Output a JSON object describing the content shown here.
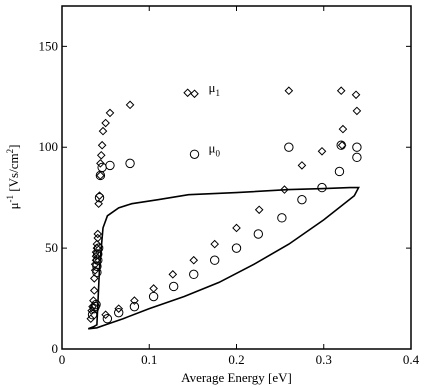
{
  "chart_data": {
    "type": "scatter",
    "title": "",
    "xlabel": "Average Energy  [eV]",
    "ylabel_main": "μ",
    "ylabel_sup": "-1",
    "ylabel_rest": " [Vs/cm",
    "ylabel_sup2": "2",
    "ylabel_end": "]",
    "xlim": [
      0,
      0.4
    ],
    "ylim": [
      0,
      170
    ],
    "xticks": [
      0,
      0.1,
      0.2,
      0.3,
      0.4
    ],
    "xtick_labels": [
      "0",
      "0.1",
      "0.2",
      "0.3",
      "0.4"
    ],
    "yticks": [
      0,
      50,
      100,
      150
    ],
    "ytick_labels": [
      "0",
      "50",
      "100",
      "150"
    ],
    "grid": false,
    "series": [
      {
        "name": "μ1",
        "name_main": "μ",
        "name_sub": "1",
        "marker": "diamond",
        "legend_pos": [
          0.145,
          127
        ],
        "points": [
          [
            0.033,
            15
          ],
          [
            0.034,
            19
          ],
          [
            0.035,
            21
          ],
          [
            0.036,
            24
          ],
          [
            0.037,
            29
          ],
          [
            0.037,
            35
          ],
          [
            0.038,
            39
          ],
          [
            0.038,
            42
          ],
          [
            0.039,
            44
          ],
          [
            0.039,
            46
          ],
          [
            0.039,
            48
          ],
          [
            0.04,
            50
          ],
          [
            0.04,
            52
          ],
          [
            0.041,
            55
          ],
          [
            0.041,
            57
          ],
          [
            0.042,
            72
          ],
          [
            0.043,
            76
          ],
          [
            0.044,
            86
          ],
          [
            0.044,
            92
          ],
          [
            0.045,
            96
          ],
          [
            0.046,
            101
          ],
          [
            0.047,
            108
          ],
          [
            0.05,
            112
          ],
          [
            0.055,
            117
          ],
          [
            0.078,
            121
          ],
          [
            0.144,
            127
          ],
          [
            0.26,
            128
          ],
          [
            0.32,
            128
          ],
          [
            0.337,
            126
          ],
          [
            0.338,
            118
          ],
          [
            0.322,
            109
          ],
          [
            0.321,
            101
          ],
          [
            0.298,
            98
          ],
          [
            0.275,
            91
          ],
          [
            0.255,
            79
          ],
          [
            0.226,
            69
          ],
          [
            0.2,
            60
          ],
          [
            0.175,
            52
          ],
          [
            0.151,
            44
          ],
          [
            0.127,
            37
          ],
          [
            0.105,
            30
          ],
          [
            0.083,
            24
          ],
          [
            0.065,
            20
          ],
          [
            0.05,
            17
          ]
        ]
      },
      {
        "name": "μ0",
        "name_main": "μ",
        "name_sub": "0",
        "marker": "circle",
        "legend_pos": [
          0.145,
          97
        ],
        "points": [
          [
            0.035,
            17
          ],
          [
            0.037,
            20
          ],
          [
            0.038,
            21
          ],
          [
            0.039,
            22
          ],
          [
            0.04,
            38
          ],
          [
            0.04,
            41
          ],
          [
            0.041,
            44
          ],
          [
            0.041,
            47
          ],
          [
            0.042,
            50
          ],
          [
            0.043,
            75
          ],
          [
            0.044,
            86
          ],
          [
            0.046,
            90
          ],
          [
            0.055,
            91
          ],
          [
            0.078,
            92
          ],
          [
            0.26,
            100
          ],
          [
            0.32,
            101
          ],
          [
            0.338,
            100
          ],
          [
            0.338,
            95
          ],
          [
            0.318,
            88
          ],
          [
            0.298,
            80
          ],
          [
            0.275,
            74
          ],
          [
            0.252,
            65
          ],
          [
            0.225,
            57
          ],
          [
            0.2,
            50
          ],
          [
            0.175,
            44
          ],
          [
            0.151,
            37
          ],
          [
            0.128,
            31
          ],
          [
            0.105,
            26
          ],
          [
            0.083,
            21
          ],
          [
            0.065,
            18
          ],
          [
            0.052,
            15
          ]
        ]
      },
      {
        "name": "",
        "marker": "line",
        "points": [
          [
            0.03,
            10
          ],
          [
            0.036,
            11
          ],
          [
            0.04,
            12
          ],
          [
            0.043,
            40
          ],
          [
            0.047,
            60
          ],
          [
            0.052,
            66
          ],
          [
            0.065,
            70
          ],
          [
            0.08,
            72
          ],
          [
            0.11,
            74
          ],
          [
            0.145,
            76.5
          ],
          [
            0.2,
            77.5
          ],
          [
            0.26,
            79
          ],
          [
            0.3,
            79.5
          ],
          [
            0.33,
            80
          ],
          [
            0.34,
            80
          ],
          [
            0.335,
            76
          ],
          [
            0.3,
            64
          ],
          [
            0.26,
            52
          ],
          [
            0.22,
            42
          ],
          [
            0.18,
            33
          ],
          [
            0.14,
            26
          ],
          [
            0.1,
            20
          ],
          [
            0.07,
            15
          ],
          [
            0.05,
            12
          ],
          [
            0.04,
            10.5
          ],
          [
            0.03,
            10
          ]
        ]
      }
    ]
  }
}
